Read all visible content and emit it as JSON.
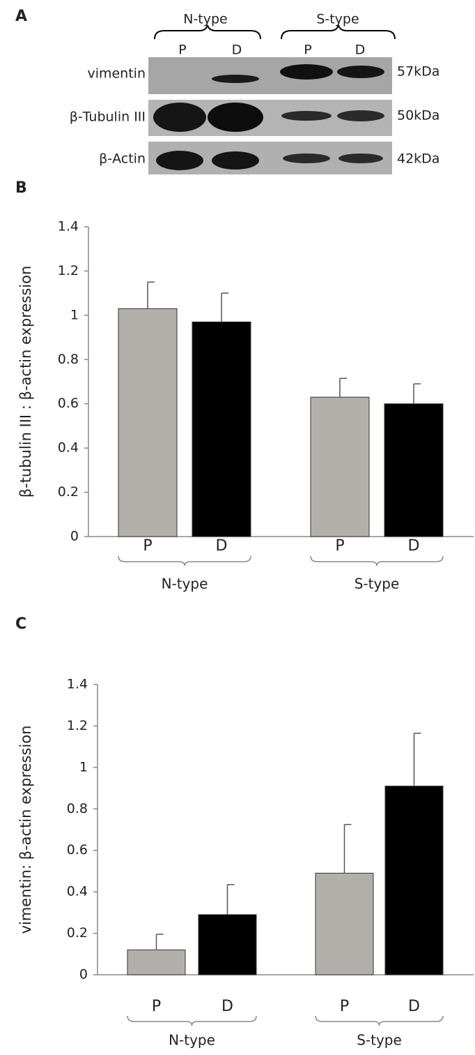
{
  "blot": {
    "panel_label": "A",
    "groups": [
      "N-type",
      "S-type"
    ],
    "lanes": [
      "P",
      "D",
      "P",
      "D"
    ],
    "rows": [
      {
        "protein": "vimentin",
        "size": "57kDa"
      },
      {
        "protein": "β-Tubulin III",
        "size": "50kDa"
      },
      {
        "protein": "β-Actin",
        "size": "42kDa"
      }
    ]
  },
  "chart_data": [
    {
      "type": "bar",
      "panel_label": "B",
      "y_label": "β-tubulin III : β-actin expression",
      "categories": [
        "P",
        "D",
        "P",
        "D"
      ],
      "groups": [
        "N-type",
        "S-type"
      ],
      "values": [
        1.03,
        0.97,
        0.63,
        0.6
      ],
      "errors": [
        0.12,
        0.13,
        0.085,
        0.09
      ],
      "colors": [
        "#b3afab",
        "#000000",
        "#b3afab",
        "#000000"
      ],
      "ylim": [
        0,
        1.4
      ],
      "yticks": [
        0,
        0.2,
        0.4,
        0.6,
        0.8,
        1,
        1.2,
        1.4
      ],
      "grid": false
    },
    {
      "type": "bar",
      "panel_label": "C",
      "y_label": "vimentin: β-actin expression",
      "categories": [
        "P",
        "D",
        "P",
        "D"
      ],
      "groups": [
        "N-type",
        "S-type"
      ],
      "values": [
        0.12,
        0.29,
        0.49,
        0.91
      ],
      "errors": [
        0.075,
        0.145,
        0.235,
        0.255
      ],
      "colors": [
        "#b3afab",
        "#000000",
        "#b3afab",
        "#000000"
      ],
      "ylim": [
        0,
        1.4
      ],
      "yticks": [
        0,
        0.2,
        0.4,
        0.6,
        0.8,
        1,
        1.2,
        1.4
      ],
      "grid": false
    }
  ]
}
